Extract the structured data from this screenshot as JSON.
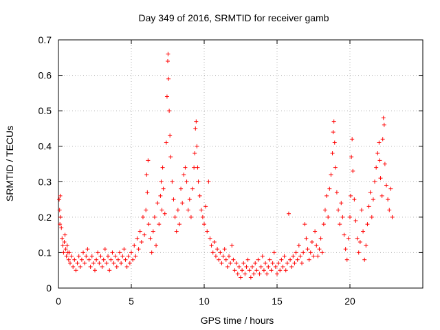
{
  "chart_data": {
    "type": "scatter",
    "title": "Day 349 of 2016, SRMTID for receiver gamb",
    "xlabel": "GPS time / hours",
    "ylabel": "SRMTID / TECUs",
    "xlim": [
      0,
      25
    ],
    "ylim": [
      0,
      0.7
    ],
    "xticks": [
      "0",
      "5",
      "10",
      "15",
      "20"
    ],
    "yticks": [
      "0",
      "0.1",
      "0.2",
      "0.3",
      "0.4",
      "0.5",
      "0.6",
      "0.7"
    ],
    "grid": true,
    "legend": "none",
    "marker": "+",
    "series_color": "#ff0000",
    "series": [
      {
        "name": "SRMTID",
        "points": [
          [
            0.05,
            0.25
          ],
          [
            0.08,
            0.22
          ],
          [
            0.1,
            0.18
          ],
          [
            0.12,
            0.26
          ],
          [
            0.15,
            0.2
          ],
          [
            0.2,
            0.17
          ],
          [
            0.25,
            0.14
          ],
          [
            0.3,
            0.12
          ],
          [
            0.35,
            0.1
          ],
          [
            0.4,
            0.13
          ],
          [
            0.45,
            0.15
          ],
          [
            0.5,
            0.11
          ],
          [
            0.55,
            0.09
          ],
          [
            0.6,
            0.12
          ],
          [
            0.65,
            0.1
          ],
          [
            0.7,
            0.08
          ],
          [
            0.75,
            0.1
          ],
          [
            0.8,
            0.07
          ],
          [
            0.9,
            0.09
          ],
          [
            1.0,
            0.06
          ],
          [
            1.1,
            0.08
          ],
          [
            1.2,
            0.05
          ],
          [
            1.3,
            0.07
          ],
          [
            1.4,
            0.09
          ],
          [
            1.5,
            0.06
          ],
          [
            1.6,
            0.08
          ],
          [
            1.7,
            0.1
          ],
          [
            1.8,
            0.07
          ],
          [
            1.9,
            0.09
          ],
          [
            2.0,
            0.11
          ],
          [
            2.1,
            0.08
          ],
          [
            2.2,
            0.06
          ],
          [
            2.3,
            0.09
          ],
          [
            2.4,
            0.07
          ],
          [
            2.5,
            0.05
          ],
          [
            2.6,
            0.08
          ],
          [
            2.7,
            0.1
          ],
          [
            2.8,
            0.07
          ],
          [
            2.9,
            0.09
          ],
          [
            3.0,
            0.06
          ],
          [
            3.1,
            0.08
          ],
          [
            3.2,
            0.11
          ],
          [
            3.3,
            0.07
          ],
          [
            3.4,
            0.09
          ],
          [
            3.5,
            0.05
          ],
          [
            3.6,
            0.08
          ],
          [
            3.7,
            0.1
          ],
          [
            3.8,
            0.07
          ],
          [
            3.9,
            0.09
          ],
          [
            4.0,
            0.06
          ],
          [
            4.1,
            0.08
          ],
          [
            4.2,
            0.1
          ],
          [
            4.3,
            0.07
          ],
          [
            4.4,
            0.09
          ],
          [
            4.5,
            0.11
          ],
          [
            4.6,
            0.08
          ],
          [
            4.7,
            0.06
          ],
          [
            4.8,
            0.09
          ],
          [
            4.9,
            0.07
          ],
          [
            5.0,
            0.1
          ],
          [
            5.1,
            0.08
          ],
          [
            5.2,
            0.12
          ],
          [
            5.3,
            0.09
          ],
          [
            5.4,
            0.14
          ],
          [
            5.5,
            0.11
          ],
          [
            5.6,
            0.16
          ],
          [
            5.7,
            0.13
          ],
          [
            5.8,
            0.2
          ],
          [
            5.9,
            0.15
          ],
          [
            6.0,
            0.22
          ],
          [
            6.05,
            0.32
          ],
          [
            6.1,
            0.27
          ],
          [
            6.15,
            0.36
          ],
          [
            6.2,
            0.18
          ],
          [
            6.3,
            0.14
          ],
          [
            6.4,
            0.1
          ],
          [
            6.5,
            0.16
          ],
          [
            6.6,
            0.2
          ],
          [
            6.7,
            0.12
          ],
          [
            6.8,
            0.24
          ],
          [
            6.9,
            0.18
          ],
          [
            7.0,
            0.26
          ],
          [
            7.05,
            0.3
          ],
          [
            7.1,
            0.22
          ],
          [
            7.15,
            0.34
          ],
          [
            7.2,
            0.28
          ],
          [
            7.3,
            0.21
          ],
          [
            7.4,
            0.41
          ],
          [
            7.45,
            0.54
          ],
          [
            7.5,
            0.64
          ],
          [
            7.52,
            0.66
          ],
          [
            7.55,
            0.59
          ],
          [
            7.6,
            0.5
          ],
          [
            7.65,
            0.43
          ],
          [
            7.7,
            0.37
          ],
          [
            7.8,
            0.3
          ],
          [
            7.9,
            0.25
          ],
          [
            8.0,
            0.2
          ],
          [
            8.1,
            0.16
          ],
          [
            8.2,
            0.22
          ],
          [
            8.3,
            0.18
          ],
          [
            8.4,
            0.28
          ],
          [
            8.5,
            0.24
          ],
          [
            8.6,
            0.32
          ],
          [
            8.7,
            0.34
          ],
          [
            8.8,
            0.3
          ],
          [
            8.9,
            0.22
          ],
          [
            9.0,
            0.25
          ],
          [
            9.1,
            0.2
          ],
          [
            9.2,
            0.28
          ],
          [
            9.3,
            0.34
          ],
          [
            9.35,
            0.38
          ],
          [
            9.4,
            0.45
          ],
          [
            9.45,
            0.47
          ],
          [
            9.5,
            0.4
          ],
          [
            9.55,
            0.34
          ],
          [
            9.6,
            0.3
          ],
          [
            9.7,
            0.26
          ],
          [
            9.8,
            0.22
          ],
          [
            9.9,
            0.2
          ],
          [
            10.0,
            0.18
          ],
          [
            10.1,
            0.23
          ],
          [
            10.2,
            0.16
          ],
          [
            10.3,
            0.3
          ],
          [
            10.4,
            0.14
          ],
          [
            10.5,
            0.12
          ],
          [
            10.6,
            0.1
          ],
          [
            10.7,
            0.13
          ],
          [
            10.8,
            0.09
          ],
          [
            10.9,
            0.11
          ],
          [
            11.0,
            0.08
          ],
          [
            11.1,
            0.1
          ],
          [
            11.2,
            0.07
          ],
          [
            11.3,
            0.09
          ],
          [
            11.4,
            0.11
          ],
          [
            11.5,
            0.08
          ],
          [
            11.6,
            0.06
          ],
          [
            11.7,
            0.09
          ],
          [
            11.8,
            0.07
          ],
          [
            11.9,
            0.12
          ],
          [
            12.0,
            0.08
          ],
          [
            12.1,
            0.05
          ],
          [
            12.2,
            0.07
          ],
          [
            12.3,
            0.04
          ],
          [
            12.4,
            0.06
          ],
          [
            12.5,
            0.03
          ],
          [
            12.6,
            0.05
          ],
          [
            12.7,
            0.07
          ],
          [
            12.8,
            0.04
          ],
          [
            12.9,
            0.06
          ],
          [
            13.0,
            0.08
          ],
          [
            13.1,
            0.05
          ],
          [
            13.2,
            0.03
          ],
          [
            13.3,
            0.06
          ],
          [
            13.4,
            0.04
          ],
          [
            13.5,
            0.07
          ],
          [
            13.6,
            0.05
          ],
          [
            13.7,
            0.08
          ],
          [
            13.8,
            0.04
          ],
          [
            13.9,
            0.06
          ],
          [
            14.0,
            0.09
          ],
          [
            14.1,
            0.05
          ],
          [
            14.2,
            0.07
          ],
          [
            14.3,
            0.04
          ],
          [
            14.4,
            0.06
          ],
          [
            14.5,
            0.08
          ],
          [
            14.6,
            0.05
          ],
          [
            14.7,
            0.07
          ],
          [
            14.8,
            0.1
          ],
          [
            14.9,
            0.06
          ],
          [
            15.0,
            0.04
          ],
          [
            15.1,
            0.07
          ],
          [
            15.2,
            0.05
          ],
          [
            15.3,
            0.08
          ],
          [
            15.4,
            0.06
          ],
          [
            15.5,
            0.09
          ],
          [
            15.6,
            0.05
          ],
          [
            15.7,
            0.07
          ],
          [
            15.8,
            0.21
          ],
          [
            15.9,
            0.08
          ],
          [
            16.0,
            0.06
          ],
          [
            16.1,
            0.09
          ],
          [
            16.2,
            0.07
          ],
          [
            16.3,
            0.1
          ],
          [
            16.4,
            0.08
          ],
          [
            16.5,
            0.12
          ],
          [
            16.6,
            0.09
          ],
          [
            16.7,
            0.07
          ],
          [
            16.8,
            0.1
          ],
          [
            16.9,
            0.18
          ],
          [
            17.0,
            0.14
          ],
          [
            17.1,
            0.11
          ],
          [
            17.2,
            0.08
          ],
          [
            17.3,
            0.1
          ],
          [
            17.4,
            0.13
          ],
          [
            17.5,
            0.09
          ],
          [
            17.6,
            0.16
          ],
          [
            17.7,
            0.12
          ],
          [
            17.8,
            0.09
          ],
          [
            17.9,
            0.11
          ],
          [
            18.0,
            0.14
          ],
          [
            18.1,
            0.1
          ],
          [
            18.2,
            0.18
          ],
          [
            18.3,
            0.22
          ],
          [
            18.4,
            0.26
          ],
          [
            18.5,
            0.2
          ],
          [
            18.6,
            0.28
          ],
          [
            18.7,
            0.32
          ],
          [
            18.8,
            0.38
          ],
          [
            18.85,
            0.44
          ],
          [
            18.9,
            0.47
          ],
          [
            18.95,
            0.41
          ],
          [
            19.0,
            0.34
          ],
          [
            19.1,
            0.27
          ],
          [
            19.2,
            0.22
          ],
          [
            19.3,
            0.18
          ],
          [
            19.4,
            0.24
          ],
          [
            19.5,
            0.2
          ],
          [
            19.6,
            0.15
          ],
          [
            19.7,
            0.11
          ],
          [
            19.8,
            0.08
          ],
          [
            19.9,
            0.14
          ],
          [
            20.0,
            0.2
          ],
          [
            20.05,
            0.26
          ],
          [
            20.1,
            0.37
          ],
          [
            20.15,
            0.42
          ],
          [
            20.2,
            0.33
          ],
          [
            20.3,
            0.25
          ],
          [
            20.4,
            0.19
          ],
          [
            20.5,
            0.14
          ],
          [
            20.6,
            0.1
          ],
          [
            20.7,
            0.13
          ],
          [
            20.8,
            0.22
          ],
          [
            20.9,
            0.16
          ],
          [
            21.0,
            0.08
          ],
          [
            21.1,
            0.12
          ],
          [
            21.2,
            0.18
          ],
          [
            21.3,
            0.23
          ],
          [
            21.4,
            0.27
          ],
          [
            21.5,
            0.2
          ],
          [
            21.6,
            0.25
          ],
          [
            21.7,
            0.3
          ],
          [
            21.8,
            0.34
          ],
          [
            21.9,
            0.38
          ],
          [
            22.0,
            0.41
          ],
          [
            22.05,
            0.36
          ],
          [
            22.1,
            0.31
          ],
          [
            22.2,
            0.26
          ],
          [
            22.25,
            0.42
          ],
          [
            22.3,
            0.48
          ],
          [
            22.35,
            0.46
          ],
          [
            22.4,
            0.35
          ],
          [
            22.5,
            0.29
          ],
          [
            22.6,
            0.25
          ],
          [
            22.7,
            0.22
          ],
          [
            22.8,
            0.28
          ],
          [
            22.9,
            0.2
          ]
        ]
      }
    ]
  }
}
